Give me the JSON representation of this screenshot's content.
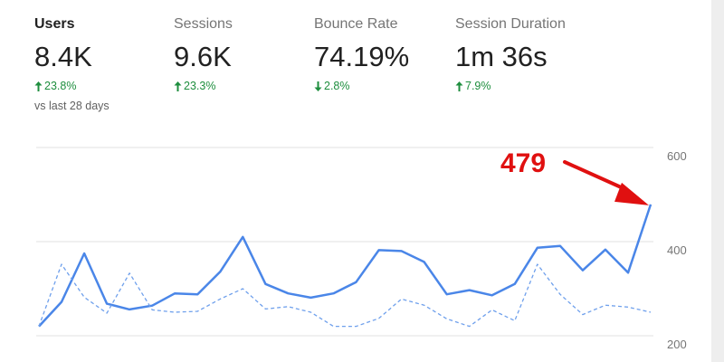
{
  "metrics": [
    {
      "label": "Users",
      "value": "8.4K",
      "change": "23.8%",
      "direction": "up",
      "compare": "vs last 28 days",
      "active": true
    },
    {
      "label": "Sessions",
      "value": "9.6K",
      "change": "23.3%",
      "direction": "up",
      "active": false
    },
    {
      "label": "Bounce Rate",
      "value": "74.19%",
      "change": "2.8%",
      "direction": "down",
      "active": false
    },
    {
      "label": "Session Duration",
      "value": "1m 36s",
      "change": "7.9%",
      "direction": "up",
      "active": false
    }
  ],
  "colors": {
    "series_current": "#4a86e8",
    "series_previous": "#6fa0ec",
    "positive": "#1e8e3e",
    "annotation": "#e01010",
    "grid": "#e0e0e0"
  },
  "annotation": {
    "text": "479"
  },
  "chart_data": {
    "type": "line",
    "y_ticks": [
      "600",
      "400",
      "200"
    ],
    "ylim": [
      200,
      600
    ],
    "grid": true,
    "series": [
      {
        "values": [
          220,
          272,
          375,
          268,
          256,
          264,
          290,
          288,
          336,
          410,
          310,
          290,
          281,
          290,
          314,
          382,
          380,
          357,
          288,
          297,
          286,
          310,
          387,
          391,
          339,
          383,
          334,
          479
        ],
        "style": "solid"
      },
      {
        "values": [
          220,
          352,
          282,
          248,
          333,
          255,
          250,
          252,
          278,
          300,
          257,
          262,
          250,
          220,
          220,
          237,
          278,
          265,
          236,
          220,
          255,
          232,
          352,
          288,
          245,
          265,
          261,
          250
        ],
        "style": "dashed"
      }
    ]
  }
}
